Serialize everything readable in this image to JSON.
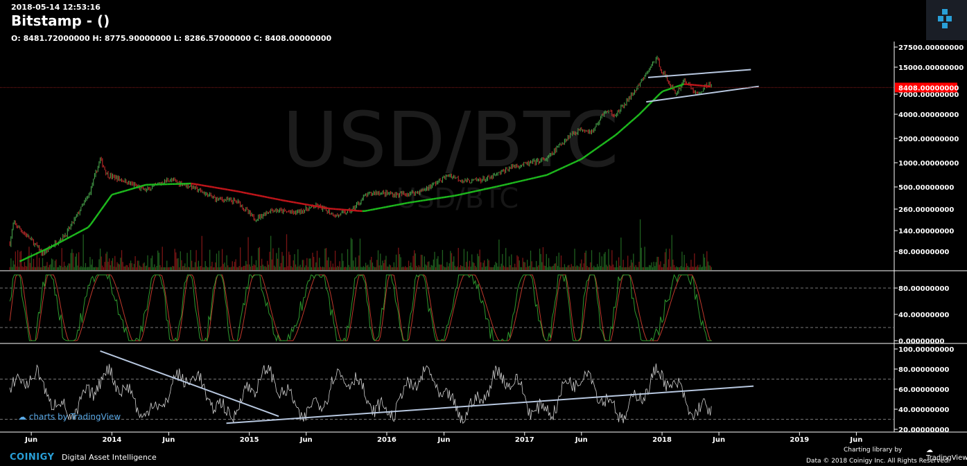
{
  "header": {
    "datetime": "2018-05-14 12:53:16",
    "title": "Bitstamp -  ()",
    "ohlc": "O: 8481.72000000 H: 8775.90000000 L: 8286.57000000 C: 8408.00000000"
  },
  "watermark": {
    "big": "USD/BTC",
    "small": "USD/BTC"
  },
  "footer": {
    "brand": "COINIGY",
    "tagline": "Digital Asset Intelligence",
    "library": "Charting library by",
    "tradingview": "TradingView",
    "copyright": "Data © 2018  Coinigy Inc. All Rights Reserved.",
    "charts_by": "charts by TradingView"
  },
  "colors": {
    "background": "#000000",
    "up": "#4caf50",
    "down": "#d32f2f",
    "ma_up": "#1db81d",
    "ma_down": "#c0151a",
    "trendline": "#b8c8e0",
    "price_label": "#ff0000",
    "stoch_k": "#2e9b2e",
    "stoch_d": "#c0392b",
    "rsi": "#d0d0d0"
  },
  "chart_data": [
    {
      "type": "candlestick",
      "pane": "price",
      "scale": "log",
      "y_ticks": [
        "27500.00000000",
        "15000.00000000",
        "7000.00000000",
        "4000.00000000",
        "2000.00000000",
        "1000.00000000",
        "500.00000000",
        "260.00000000",
        "140.00000000",
        "80.00000000"
      ],
      "last_price_label": "8408.00000000",
      "price_keypoints": [
        [
          "2013-04",
          80
        ],
        [
          "2013-04-15",
          180
        ],
        [
          "2013-06",
          110
        ],
        [
          "2013-07",
          75
        ],
        [
          "2013-09",
          130
        ],
        [
          "2013-11",
          400
        ],
        [
          "2013-12-01",
          1100
        ],
        [
          "2013-12-20",
          700
        ],
        [
          "2014-02",
          600
        ],
        [
          "2014-04",
          450
        ],
        [
          "2014-06",
          620
        ],
        [
          "2014-08",
          500
        ],
        [
          "2014-10",
          360
        ],
        [
          "2014-12",
          330
        ],
        [
          "2015-01-15",
          200
        ],
        [
          "2015-03",
          260
        ],
        [
          "2015-05",
          240
        ],
        [
          "2015-07",
          290
        ],
        [
          "2015-08-20",
          220
        ],
        [
          "2015-10",
          260
        ],
        [
          "2015-11-05",
          390
        ],
        [
          "2015-12",
          430
        ],
        [
          "2016-02",
          400
        ],
        [
          "2016-04",
          440
        ],
        [
          "2016-06-15",
          700
        ],
        [
          "2016-08",
          580
        ],
        [
          "2016-10",
          640
        ],
        [
          "2016-12",
          900
        ],
        [
          "2017-01",
          950
        ],
        [
          "2017-03",
          1100
        ],
        [
          "2017-05",
          2200
        ],
        [
          "2017-06",
          2600
        ],
        [
          "2017-07",
          2400
        ],
        [
          "2017-08",
          4300
        ],
        [
          "2017-09",
          3900
        ],
        [
          "2017-10",
          5800
        ],
        [
          "2017-11",
          9000
        ],
        [
          "2017-12-17",
          19500
        ],
        [
          "2018-01",
          13500
        ],
        [
          "2018-02-06",
          7000
        ],
        [
          "2018-03",
          10500
        ],
        [
          "2018-04-05",
          6800
        ],
        [
          "2018-05-05",
          9700
        ],
        [
          "2018-05-14",
          8408
        ]
      ],
      "moving_average_keypoints": [
        [
          "2013-05",
          60
        ],
        [
          "2013-08",
          95
        ],
        [
          "2013-11",
          160
        ],
        [
          "2014-01",
          400
        ],
        [
          "2014-04",
          530
        ],
        [
          "2014-08",
          550
        ],
        [
          "2014-12",
          440
        ],
        [
          "2015-04",
          340
        ],
        [
          "2015-08",
          270
        ],
        [
          "2015-11",
          250
        ],
        [
          "2016-03",
          320
        ],
        [
          "2016-07",
          390
        ],
        [
          "2016-11",
          520
        ],
        [
          "2017-03",
          700
        ],
        [
          "2017-06",
          1100
        ],
        [
          "2017-09",
          2200
        ],
        [
          "2017-11",
          3900
        ],
        [
          "2018-01",
          7500
        ],
        [
          "2018-03",
          9300
        ],
        [
          "2018-05-14",
          8600
        ]
      ],
      "trendlines": [
        {
          "from": [
            "2017-11-25",
            11200
          ],
          "to": [
            "2018-08-25",
            14000
          ]
        },
        {
          "from": [
            "2017-11-20",
            5600
          ],
          "to": [
            "2018-09-15",
            8700
          ]
        }
      ]
    },
    {
      "type": "line",
      "pane": "stochastic",
      "series": [
        {
          "values": "oscillating 0-100"
        },
        {
          "values": "oscillating 0-100"
        }
      ],
      "y_ticks": [
        "80.00000000",
        "40.00000000",
        "0.00000000"
      ],
      "ylim": [
        0,
        100
      ],
      "bands": [
        80,
        20
      ]
    },
    {
      "type": "line",
      "pane": "rsi",
      "y_ticks": [
        "100.00000000",
        "80.00000000",
        "60.00000000",
        "40.00000000",
        "20.00000000"
      ],
      "ylim": [
        20,
        100
      ],
      "bands": [
        70,
        30
      ],
      "trendlines": [
        {
          "from": [
            "2013-12-01",
            98
          ],
          "to": [
            "2015-03-20",
            33
          ]
        },
        {
          "from": [
            "2014-11-01",
            26
          ],
          "to": [
            "2018-09-01",
            63
          ]
        }
      ]
    }
  ],
  "x_ticks": [
    {
      "label": "Jun",
      "date": "2013-06"
    },
    {
      "label": "2014",
      "date": "2014-01"
    },
    {
      "label": "Jun",
      "date": "2014-06"
    },
    {
      "label": "2015",
      "date": "2015-01"
    },
    {
      "label": "Jun",
      "date": "2015-06"
    },
    {
      "label": "2016",
      "date": "2016-01"
    },
    {
      "label": "Jun",
      "date": "2016-06"
    },
    {
      "label": "2017",
      "date": "2017-01"
    },
    {
      "label": "Jun",
      "date": "2017-06"
    },
    {
      "label": "2018",
      "date": "2018-01"
    },
    {
      "label": "Jun",
      "date": "2018-06"
    },
    {
      "label": "2019",
      "date": "2019-01"
    },
    {
      "label": "Jun",
      "date": "2019-06"
    }
  ]
}
